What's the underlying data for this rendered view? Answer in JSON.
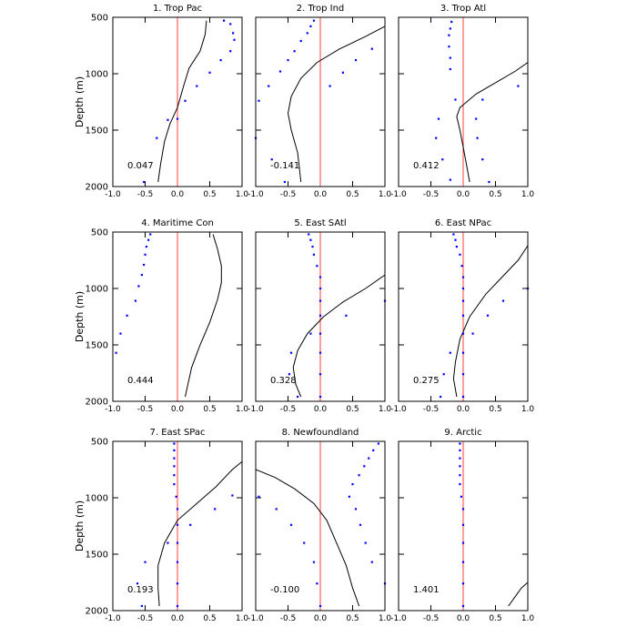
{
  "figure": {
    "ylabel": "Depth (m)",
    "x_ticks": [
      "-1.0",
      "-0.5",
      "0.0",
      "0.5",
      "1.0"
    ],
    "y_ticks": [
      "500",
      "1000",
      "1500",
      "2000"
    ],
    "colors": {
      "axis": "#000000",
      "zero_line": "#ff4040",
      "dots": "#0000ff",
      "curve": "#000000"
    }
  },
  "chart_data": [
    {
      "type": "line",
      "title": "1. Trop Pac",
      "value_label": "0.047",
      "xlim": [
        -1,
        1
      ],
      "ylim": [
        500,
        2000
      ],
      "x_ticks": [
        -1,
        -0.5,
        0,
        0.5,
        1
      ],
      "y_ticks": [
        500,
        1000,
        1500,
        2000
      ],
      "dots": [
        [
          0.72,
          530
        ],
        [
          0.82,
          560
        ],
        [
          0.86,
          640
        ],
        [
          0.88,
          700
        ],
        [
          0.82,
          800
        ],
        [
          0.67,
          880
        ],
        [
          0.5,
          990
        ],
        [
          0.3,
          1110
        ],
        [
          0.12,
          1240
        ],
        [
          0,
          1400
        ],
        [
          -0.15,
          1410
        ],
        [
          -0.32,
          1570
        ],
        [
          -0.52,
          1960
        ]
      ],
      "curve": [
        [
          0.45,
          530
        ],
        [
          0.43,
          650
        ],
        [
          0.35,
          800
        ],
        [
          0.18,
          950
        ],
        [
          0.1,
          1100
        ],
        [
          0,
          1300
        ],
        [
          -0.12,
          1450
        ],
        [
          -0.2,
          1600
        ],
        [
          -0.26,
          1800
        ],
        [
          -0.3,
          1960
        ]
      ]
    },
    {
      "type": "line",
      "title": "2. Trop Ind",
      "value_label": "-0.141",
      "xlim": [
        -1,
        1
      ],
      "ylim": [
        500,
        2000
      ],
      "x_ticks": [
        -1,
        -0.5,
        0,
        0.5,
        1
      ],
      "y_ticks": [
        500,
        1000,
        1500,
        2000
      ],
      "dots": [
        [
          -0.1,
          530
        ],
        [
          -0.15,
          580
        ],
        [
          -0.2,
          640
        ],
        [
          -0.3,
          710
        ],
        [
          -0.4,
          800
        ],
        [
          -0.5,
          880
        ],
        [
          -0.62,
          980
        ],
        [
          -0.8,
          1110
        ],
        [
          -0.95,
          1240
        ],
        [
          -1.0,
          1570
        ],
        [
          -0.75,
          1760
        ],
        [
          -0.55,
          1960
        ],
        [
          0.8,
          780
        ],
        [
          0.55,
          880
        ],
        [
          0.35,
          990
        ],
        [
          0.15,
          1110
        ]
      ],
      "curve": [
        [
          1.0,
          580
        ],
        [
          0.7,
          670
        ],
        [
          0.3,
          780
        ],
        [
          -0.05,
          900
        ],
        [
          -0.3,
          1040
        ],
        [
          -0.45,
          1200
        ],
        [
          -0.5,
          1350
        ],
        [
          -0.45,
          1500
        ],
        [
          -0.35,
          1700
        ],
        [
          -0.3,
          1960
        ]
      ]
    },
    {
      "type": "line",
      "title": "3. Trop Atl",
      "value_label": "0.412",
      "xlim": [
        -1,
        1
      ],
      "ylim": [
        500,
        2000
      ],
      "x_ticks": [
        -1,
        -0.5,
        0,
        0.5,
        1
      ],
      "y_ticks": [
        500,
        1000,
        1500,
        2000
      ],
      "dots": [
        [
          -0.18,
          540
        ],
        [
          -0.2,
          600
        ],
        [
          -0.22,
          660
        ],
        [
          -0.22,
          760
        ],
        [
          -0.2,
          860
        ],
        [
          -0.2,
          960
        ],
        [
          -0.12,
          1230
        ],
        [
          -0.38,
          1400
        ],
        [
          -0.42,
          1570
        ],
        [
          -0.32,
          1760
        ],
        [
          -0.2,
          1940
        ],
        [
          0.85,
          1110
        ],
        [
          0.3,
          1230
        ],
        [
          0.2,
          1400
        ],
        [
          0.22,
          1570
        ],
        [
          0.3,
          1760
        ],
        [
          0.4,
          1960
        ]
      ],
      "curve": [
        [
          1.0,
          900
        ],
        [
          0.8,
          980
        ],
        [
          0.5,
          1080
        ],
        [
          0.2,
          1180
        ],
        [
          -0.05,
          1300
        ],
        [
          -0.1,
          1380
        ],
        [
          -0.05,
          1500
        ],
        [
          0,
          1650
        ],
        [
          0.05,
          1800
        ],
        [
          0.1,
          1960
        ]
      ]
    },
    {
      "type": "line",
      "title": "4. Maritime Con",
      "value_label": "0.444",
      "xlim": [
        -1,
        1
      ],
      "ylim": [
        500,
        2000
      ],
      "x_ticks": [
        -1,
        -0.5,
        0,
        0.5,
        1
      ],
      "y_ticks": [
        500,
        1000,
        1500,
        2000
      ],
      "dots": [
        [
          -0.42,
          520
        ],
        [
          -0.45,
          570
        ],
        [
          -0.48,
          630
        ],
        [
          -0.5,
          700
        ],
        [
          -0.52,
          790
        ],
        [
          -0.55,
          880
        ],
        [
          -0.6,
          980
        ],
        [
          -0.65,
          1110
        ],
        [
          -0.78,
          1240
        ],
        [
          -0.88,
          1400
        ],
        [
          -0.95,
          1570
        ]
      ],
      "curve": [
        [
          0.55,
          520
        ],
        [
          0.62,
          650
        ],
        [
          0.68,
          800
        ],
        [
          0.68,
          950
        ],
        [
          0.62,
          1100
        ],
        [
          0.5,
          1300
        ],
        [
          0.35,
          1500
        ],
        [
          0.22,
          1700
        ],
        [
          0.12,
          1960
        ]
      ]
    },
    {
      "type": "line",
      "title": "5. East SAtl",
      "value_label": "0.328",
      "xlim": [
        -1,
        1
      ],
      "ylim": [
        500,
        2000
      ],
      "x_ticks": [
        -1,
        -0.5,
        0,
        0.5,
        1
      ],
      "y_ticks": [
        500,
        1000,
        1500,
        2000
      ],
      "dots": [
        [
          -0.18,
          520
        ],
        [
          -0.15,
          570
        ],
        [
          -0.12,
          630
        ],
        [
          -0.1,
          700
        ],
        [
          -0.05,
          800
        ],
        [
          0,
          900
        ],
        [
          0,
          1000
        ],
        [
          0,
          1110
        ],
        [
          0,
          1240
        ],
        [
          0,
          1400
        ],
        [
          0,
          1570
        ],
        [
          0,
          1760
        ],
        [
          0,
          1960
        ],
        [
          1.0,
          1110
        ],
        [
          0.4,
          1240
        ],
        [
          -0.15,
          1400
        ],
        [
          -0.45,
          1570
        ],
        [
          -0.48,
          1760
        ],
        [
          -0.35,
          1960
        ]
      ],
      "curve": [
        [
          1.0,
          880
        ],
        [
          0.7,
          1000
        ],
        [
          0.35,
          1120
        ],
        [
          0.05,
          1250
        ],
        [
          -0.2,
          1400
        ],
        [
          -0.35,
          1550
        ],
        [
          -0.42,
          1700
        ],
        [
          -0.38,
          1850
        ],
        [
          -0.3,
          1960
        ]
      ]
    },
    {
      "type": "line",
      "title": "6. East NPac",
      "value_label": "0.275",
      "xlim": [
        -1,
        1
      ],
      "ylim": [
        500,
        2000
      ],
      "x_ticks": [
        -1,
        -0.5,
        0,
        0.5,
        1
      ],
      "y_ticks": [
        500,
        1000,
        1500,
        2000
      ],
      "dots": [
        [
          -0.15,
          520
        ],
        [
          -0.12,
          570
        ],
        [
          -0.1,
          630
        ],
        [
          -0.05,
          700
        ],
        [
          -0.02,
          800
        ],
        [
          0,
          900
        ],
        [
          0,
          1000
        ],
        [
          0,
          1110
        ],
        [
          0,
          1240
        ],
        [
          0,
          1400
        ],
        [
          0,
          1570
        ],
        [
          0,
          1760
        ],
        [
          0,
          1960
        ],
        [
          1.0,
          1000
        ],
        [
          0.62,
          1110
        ],
        [
          0.38,
          1240
        ],
        [
          0.15,
          1400
        ],
        [
          -0.2,
          1570
        ],
        [
          -0.3,
          1760
        ],
        [
          -0.35,
          1960
        ]
      ],
      "curve": [
        [
          1.0,
          620
        ],
        [
          0.85,
          750
        ],
        [
          0.6,
          900
        ],
        [
          0.35,
          1050
        ],
        [
          0.1,
          1250
        ],
        [
          -0.05,
          1450
        ],
        [
          -0.12,
          1650
        ],
        [
          -0.15,
          1800
        ],
        [
          -0.1,
          1960
        ]
      ]
    },
    {
      "type": "line",
      "title": "7. East SPac",
      "value_label": "0.193",
      "xlim": [
        -1,
        1
      ],
      "ylim": [
        500,
        2000
      ],
      "x_ticks": [
        -1,
        -0.5,
        0,
        0.5,
        1
      ],
      "y_ticks": [
        500,
        1000,
        1500,
        2000
      ],
      "dots": [
        [
          -0.05,
          520
        ],
        [
          -0.05,
          580
        ],
        [
          -0.05,
          650
        ],
        [
          -0.05,
          720
        ],
        [
          -0.05,
          800
        ],
        [
          -0.05,
          880
        ],
        [
          -0.02,
          990
        ],
        [
          0,
          1100
        ],
        [
          0,
          1240
        ],
        [
          0,
          1400
        ],
        [
          0,
          1570
        ],
        [
          0,
          1760
        ],
        [
          0,
          1960
        ],
        [
          0.85,
          980
        ],
        [
          0.58,
          1100
        ],
        [
          0.2,
          1240
        ],
        [
          -0.15,
          1400
        ],
        [
          -0.5,
          1570
        ],
        [
          -0.62,
          1760
        ],
        [
          -0.55,
          1960
        ]
      ],
      "curve": [
        [
          1.0,
          680
        ],
        [
          0.85,
          750
        ],
        [
          0.6,
          900
        ],
        [
          0.3,
          1050
        ],
        [
          0,
          1200
        ],
        [
          -0.2,
          1400
        ],
        [
          -0.3,
          1600
        ],
        [
          -0.3,
          1800
        ],
        [
          -0.28,
          1960
        ]
      ]
    },
    {
      "type": "line",
      "title": "8. Newfoundland",
      "value_label": "-0.100",
      "xlim": [
        -1,
        1
      ],
      "ylim": [
        500,
        2000
      ],
      "x_ticks": [
        -1,
        -0.5,
        0,
        0.5,
        1
      ],
      "y_ticks": [
        500,
        1000,
        1500,
        2000
      ],
      "dots": [
        [
          0.9,
          520
        ],
        [
          0.82,
          580
        ],
        [
          0.75,
          650
        ],
        [
          0.68,
          720
        ],
        [
          0.6,
          800
        ],
        [
          0.5,
          880
        ],
        [
          0.45,
          990
        ],
        [
          0.55,
          1100
        ],
        [
          0.62,
          1240
        ],
        [
          0.7,
          1400
        ],
        [
          0.8,
          1570
        ],
        [
          1.0,
          1760
        ],
        [
          -0.95,
          990
        ],
        [
          -0.68,
          1100
        ],
        [
          -0.45,
          1240
        ],
        [
          -0.25,
          1400
        ],
        [
          -0.1,
          1570
        ],
        [
          -0.05,
          1760
        ],
        [
          0,
          1960
        ]
      ],
      "curve": [
        [
          -1.0,
          750
        ],
        [
          -0.7,
          820
        ],
        [
          -0.4,
          920
        ],
        [
          -0.1,
          1050
        ],
        [
          0.1,
          1200
        ],
        [
          0.25,
          1400
        ],
        [
          0.4,
          1600
        ],
        [
          0.5,
          1800
        ],
        [
          0.6,
          1960
        ]
      ]
    },
    {
      "type": "line",
      "title": "9. Arctic",
      "value_label": "1.401",
      "xlim": [
        -1,
        1
      ],
      "ylim": [
        500,
        2000
      ],
      "x_ticks": [
        -1,
        -0.5,
        0,
        0.5,
        1
      ],
      "y_ticks": [
        500,
        1000,
        1500,
        2000
      ],
      "dots": [
        [
          -0.05,
          520
        ],
        [
          -0.05,
          580
        ],
        [
          -0.05,
          650
        ],
        [
          -0.05,
          720
        ],
        [
          -0.05,
          800
        ],
        [
          -0.05,
          880
        ],
        [
          -0.03,
          990
        ],
        [
          0,
          1100
        ],
        [
          0,
          1240
        ],
        [
          0,
          1400
        ],
        [
          0,
          1570
        ],
        [
          0,
          1760
        ],
        [
          0,
          1960
        ]
      ],
      "curve": [
        [
          0.7,
          1960
        ],
        [
          0.8,
          1880
        ],
        [
          0.9,
          1800
        ],
        [
          1.0,
          1750
        ]
      ]
    }
  ]
}
